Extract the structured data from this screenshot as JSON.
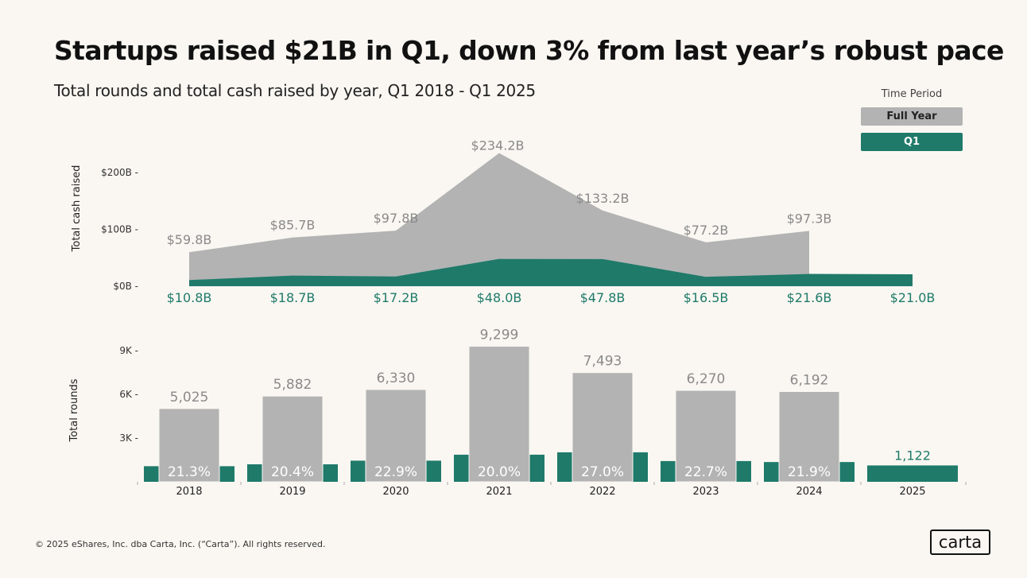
{
  "title": "Startups raised $21B in Q1, down 3% from last year’s robust pace",
  "subtitle": "Total rounds and total cash raised by year, Q1 2018 - Q1 2025",
  "legend": {
    "title": "Time Period",
    "items": [
      {
        "label": "Full Year",
        "color": "#b3b3b3"
      },
      {
        "label": "Q1",
        "color": "#1f7a6a"
      }
    ]
  },
  "footer": "© 2025 eShares, Inc. dba Carta, Inc. (“Carta”). All rights reserved.",
  "logo": "carta",
  "chart_data": [
    {
      "type": "area",
      "ylabel": "Total cash raised",
      "ylim": [
        0,
        200
      ],
      "yticks": [
        "$0B",
        "$100B",
        "$200B"
      ],
      "ytick_values": [
        0,
        100,
        200
      ],
      "categories": [
        "2018",
        "2019",
        "2020",
        "2021",
        "2022",
        "2023",
        "2024",
        "2025"
      ],
      "series": [
        {
          "name": "Full Year",
          "values": [
            59.8,
            85.7,
            97.8,
            234.2,
            133.2,
            77.2,
            97.3,
            null
          ],
          "labels": [
            "$59.8B",
            "$85.7B",
            "$97.8B",
            "$234.2B",
            "$133.2B",
            "$77.2B",
            "$97.3B",
            ""
          ],
          "color": "#b3b3b3"
        },
        {
          "name": "Q1",
          "values": [
            10.8,
            18.7,
            17.2,
            48.0,
            47.8,
            16.5,
            21.6,
            21.0
          ],
          "labels": [
            "$10.8B",
            "$18.7B",
            "$17.2B",
            "$48.0B",
            "$47.8B",
            "$16.5B",
            "$21.6B",
            "$21.0B"
          ],
          "color": "#1f7a6a"
        }
      ]
    },
    {
      "type": "bar",
      "ylabel": "Total rounds",
      "ylim": [
        0,
        9000
      ],
      "yticks": [
        "3K",
        "6K",
        "9K"
      ],
      "ytick_values": [
        3000,
        6000,
        9000
      ],
      "categories": [
        "2018",
        "2019",
        "2020",
        "2021",
        "2022",
        "2023",
        "2024",
        "2025"
      ],
      "series": [
        {
          "name": "Full Year",
          "values": [
            5025,
            5882,
            6330,
            9299,
            7493,
            6270,
            6192,
            null
          ],
          "labels": [
            "5,025",
            "5,882",
            "6,330",
            "9,299",
            "7,493",
            "6,270",
            "6,192",
            ""
          ],
          "color": "#b3b3b3"
        },
        {
          "name": "Q1",
          "values": [
            1070,
            1200,
            1450,
            1860,
            2023,
            1423,
            1356,
            1122
          ],
          "labels": [
            "",
            "",
            "",
            "",
            "",
            "",
            "",
            "1,122"
          ],
          "color": "#1f7a6a"
        }
      ],
      "q1_share_labels": [
        "21.3%",
        "20.4%",
        "22.9%",
        "20.0%",
        "27.0%",
        "22.7%",
        "21.9%",
        ""
      ]
    }
  ]
}
